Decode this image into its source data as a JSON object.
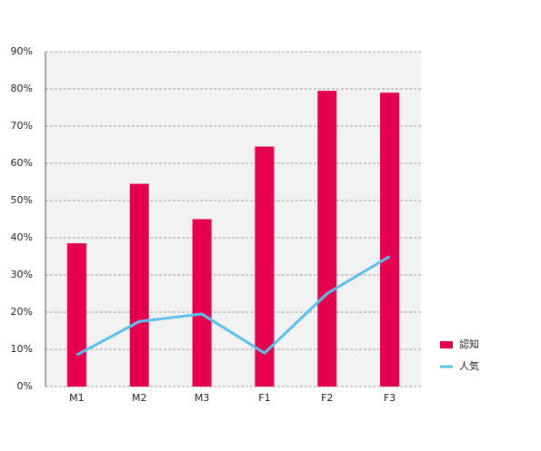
{
  "chart_data": {
    "type": "combo",
    "categories": [
      "M1",
      "M2",
      "M3",
      "F1",
      "F2",
      "F3"
    ],
    "series": [
      {
        "name": "認知",
        "type": "bar",
        "color": "#e4004f",
        "values": [
          38.5,
          54.5,
          45,
          64.5,
          79.5,
          79
        ]
      },
      {
        "name": "人気",
        "type": "line",
        "color": "#5bc0eb",
        "values": [
          8.5,
          17.5,
          19.5,
          9,
          25,
          35
        ]
      }
    ],
    "ylim": [
      0,
      90
    ],
    "yticks": [
      {
        "value": 0,
        "label": "0%"
      },
      {
        "value": 10,
        "label": "10%"
      },
      {
        "value": 20,
        "label": "20%"
      },
      {
        "value": 30,
        "label": "30%"
      },
      {
        "value": 40,
        "label": "40%"
      },
      {
        "value": 50,
        "label": "50%"
      },
      {
        "value": 60,
        "label": "60%"
      },
      {
        "value": 70,
        "label": "70%"
      },
      {
        "value": 80,
        "label": "80%"
      },
      {
        "value": 90,
        "label": "90%"
      }
    ],
    "grid": true,
    "legend": "right"
  }
}
